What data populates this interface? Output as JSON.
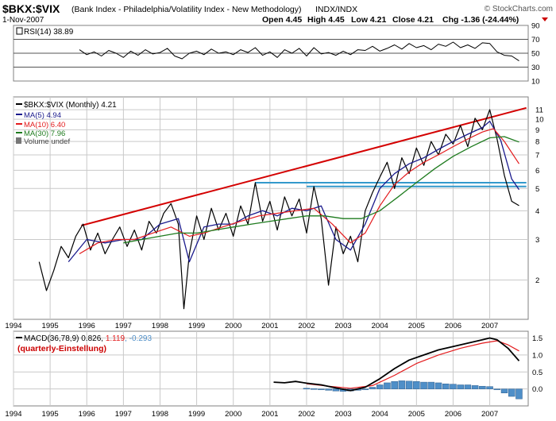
{
  "header": {
    "symbol": "$BKX:$VIX",
    "description": "(Bank Index - Philadelphia/Volatility Index - New Methodology)",
    "exchange": "INDX/INDX",
    "watermark": "© StockCharts.com",
    "date": "1-Nov-2007",
    "quote": {
      "open": "Open 4.45",
      "high": "High 4.45",
      "low": "Low 4.21",
      "close": "Close 4.21",
      "chg": "Chg -1.36 (-24.44%)"
    }
  },
  "colors": {
    "price": "#000000",
    "ma5": "#1a1a8c",
    "ma10": "#e31a1c",
    "ma30": "#1e7b1e",
    "trend": "#d40000",
    "support": "#3399cc",
    "hist": "#4f8fc8",
    "grid": "#c9c9c9",
    "annot": "#cc0000"
  },
  "chart_data": [
    {
      "type": "line",
      "name": "rsi_panel",
      "legend": "RSI(14) 38.89",
      "ylim": [
        10,
        90
      ],
      "yticks": [
        "90",
        "70",
        "50",
        "30",
        "10"
      ],
      "reference_lines": [
        70,
        50,
        30
      ],
      "x": [
        1995.8,
        1996.0,
        1996.2,
        1996.4,
        1996.6,
        1996.8,
        1997.0,
        1997.2,
        1997.4,
        1997.6,
        1997.8,
        1998.0,
        1998.2,
        1998.4,
        1998.6,
        1998.8,
        1999.0,
        1999.2,
        1999.4,
        1999.6,
        1999.8,
        2000.0,
        2000.2,
        2000.4,
        2000.6,
        2000.8,
        2001.0,
        2001.2,
        2001.4,
        2001.6,
        2001.8,
        2002.0,
        2002.2,
        2002.4,
        2002.6,
        2002.8,
        2003.0,
        2003.2,
        2003.4,
        2003.6,
        2003.8,
        2004.0,
        2004.2,
        2004.4,
        2004.6,
        2004.8,
        2005.0,
        2005.2,
        2005.4,
        2005.6,
        2005.8,
        2006.0,
        2006.2,
        2006.4,
        2006.6,
        2006.8,
        2007.0,
        2007.2,
        2007.4,
        2007.6,
        2007.8
      ],
      "values": [
        55,
        48,
        52,
        46,
        54,
        50,
        44,
        53,
        47,
        55,
        49,
        51,
        57,
        46,
        42,
        50,
        53,
        48,
        56,
        50,
        52,
        48,
        55,
        51,
        58,
        47,
        52,
        44,
        55,
        50,
        57,
        46,
        58,
        49,
        51,
        47,
        53,
        48,
        55,
        54,
        60,
        53,
        57,
        62,
        56,
        64,
        58,
        61,
        55,
        63,
        60,
        66,
        58,
        62,
        57,
        65,
        64,
        52,
        47,
        46,
        39
      ]
    },
    {
      "type": "line",
      "name": "price_panel",
      "legend": [
        "$BKX:$VIX (Monthly) 4.21",
        "MA(5) 4.94",
        "MA(10) 6.40",
        "MA(30) 7.96",
        "Volume undef"
      ],
      "scale": "log",
      "ylim": [
        1.35,
        12.5
      ],
      "yticks": [
        "11",
        "10",
        "9",
        "8",
        "7",
        "6",
        "5",
        "4",
        "3",
        "2"
      ],
      "categories": [
        "1994",
        "1995",
        "1996",
        "1997",
        "1998",
        "1999",
        "2000",
        "2001",
        "2002",
        "2003",
        "2004",
        "2005",
        "2006",
        "2007"
      ],
      "series": [
        {
          "name": "$BKX:$VIX",
          "x": [
            1994.7,
            1994.9,
            1995.1,
            1995.3,
            1995.5,
            1995.7,
            1995.9,
            1996.1,
            1996.3,
            1996.5,
            1996.7,
            1996.9,
            1997.1,
            1997.3,
            1997.5,
            1997.7,
            1997.9,
            1998.1,
            1998.3,
            1998.5,
            1998.65,
            1998.8,
            1999.0,
            1999.2,
            1999.4,
            1999.6,
            1999.8,
            2000.0,
            2000.2,
            2000.4,
            2000.6,
            2000.8,
            2001.0,
            2001.2,
            2001.4,
            2001.6,
            2001.8,
            2002.0,
            2002.2,
            2002.4,
            2002.6,
            2002.8,
            2003.0,
            2003.2,
            2003.4,
            2003.6,
            2003.8,
            2004.0,
            2004.2,
            2004.4,
            2004.6,
            2004.8,
            2005.0,
            2005.2,
            2005.4,
            2005.6,
            2005.8,
            2006.0,
            2006.2,
            2006.4,
            2006.6,
            2006.8,
            2007.0,
            2007.2,
            2007.4,
            2007.6,
            2007.8
          ],
          "values": [
            2.4,
            1.8,
            2.2,
            2.8,
            2.5,
            3.1,
            3.5,
            2.7,
            3.2,
            2.6,
            3.0,
            3.4,
            2.8,
            3.3,
            2.7,
            3.6,
            3.2,
            3.9,
            4.3,
            3.5,
            1.5,
            2.6,
            3.8,
            3.0,
            4.1,
            3.3,
            3.9,
            3.1,
            4.2,
            3.5,
            5.3,
            3.6,
            4.4,
            3.3,
            4.6,
            3.8,
            4.5,
            3.2,
            5.1,
            3.7,
            1.9,
            3.4,
            2.6,
            3.1,
            2.4,
            4.0,
            4.8,
            5.6,
            6.5,
            5.0,
            6.8,
            5.8,
            7.5,
            6.3,
            8.0,
            7.0,
            8.6,
            7.8,
            9.4,
            7.6,
            10.1,
            9.0,
            11.0,
            8.2,
            5.7,
            4.4,
            4.21
          ]
        },
        {
          "name": "MA(5)",
          "x": [
            1995.5,
            1996.0,
            1996.5,
            1997.0,
            1997.5,
            1998.0,
            1998.5,
            1998.8,
            1999.2,
            1999.6,
            2000.0,
            2000.4,
            2000.8,
            2001.2,
            2001.6,
            2002.0,
            2002.4,
            2002.8,
            2003.2,
            2003.6,
            2004.0,
            2004.4,
            2004.8,
            2005.2,
            2005.6,
            2006.0,
            2006.4,
            2006.8,
            2007.0,
            2007.3,
            2007.6,
            2007.8
          ],
          "values": [
            2.4,
            3.0,
            2.9,
            3.0,
            3.0,
            3.5,
            3.7,
            2.4,
            3.4,
            3.5,
            3.5,
            3.8,
            4.0,
            3.8,
            4.1,
            4.0,
            4.2,
            3.0,
            2.7,
            3.5,
            5.0,
            5.8,
            6.4,
            6.8,
            7.4,
            8.0,
            8.6,
            9.2,
            9.8,
            8.1,
            5.5,
            4.94
          ]
        },
        {
          "name": "MA(10)",
          "x": [
            1995.8,
            1996.3,
            1996.8,
            1997.3,
            1997.8,
            1998.3,
            1998.8,
            1999.2,
            1999.7,
            2000.2,
            2000.7,
            2001.2,
            2001.7,
            2002.2,
            2002.7,
            2003.2,
            2003.6,
            2004.0,
            2004.4,
            2004.8,
            2005.2,
            2005.6,
            2006.0,
            2006.4,
            2006.8,
            2007.1,
            2007.4,
            2007.8
          ],
          "values": [
            2.6,
            2.9,
            3.0,
            3.0,
            3.2,
            3.4,
            3.1,
            3.2,
            3.4,
            3.6,
            3.8,
            3.9,
            4.0,
            4.1,
            3.5,
            2.9,
            3.2,
            4.2,
            5.2,
            5.9,
            6.5,
            7.0,
            7.6,
            8.2,
            8.8,
            9.1,
            8.0,
            6.4
          ]
        },
        {
          "name": "MA(30)",
          "x": [
            1997.0,
            1997.5,
            1998.0,
            1998.5,
            1999.0,
            1999.5,
            2000.0,
            2000.5,
            2001.0,
            2001.5,
            2002.0,
            2002.5,
            2003.0,
            2003.5,
            2004.0,
            2004.5,
            2005.0,
            2005.5,
            2006.0,
            2006.5,
            2007.0,
            2007.4,
            2007.8
          ],
          "values": [
            2.9,
            3.0,
            3.1,
            3.2,
            3.2,
            3.3,
            3.4,
            3.5,
            3.6,
            3.7,
            3.8,
            3.8,
            3.7,
            3.7,
            4.0,
            4.6,
            5.3,
            6.1,
            6.9,
            7.6,
            8.3,
            8.4,
            7.96
          ]
        }
      ],
      "trendline": {
        "x": [
          1995.85,
          2008.0
        ],
        "values": [
          3.45,
          11.2
        ]
      },
      "support_lines": [
        {
          "x": [
            2000.6,
            2008.0
          ],
          "value": 5.3
        },
        {
          "x": [
            2002.0,
            2008.0
          ],
          "value": 5.1
        }
      ]
    },
    {
      "type": "line",
      "name": "macd_panel",
      "legend": [
        "MACD(36,78,9) 0.826, ",
        "1.119",
        ", -0.293"
      ],
      "annotation": "(quarterly-Einstellung)",
      "ylim": [
        -0.5,
        1.7
      ],
      "yticks": [
        "1.5",
        "1.0",
        "0.5",
        "0.0"
      ],
      "categories": [
        "1994",
        "1995",
        "1996",
        "1997",
        "1998",
        "1999",
        "2000",
        "2001",
        "2002",
        "2003",
        "2004",
        "2005",
        "2006",
        "2007"
      ],
      "series": [
        {
          "name": "MACD",
          "x": [
            2001.1,
            2001.4,
            2001.7,
            2002.0,
            2002.4,
            2002.8,
            2003.2,
            2003.6,
            2004.0,
            2004.4,
            2004.8,
            2005.2,
            2005.6,
            2006.0,
            2006.4,
            2006.8,
            2007.0,
            2007.2,
            2007.5,
            2007.8
          ],
          "values": [
            0.2,
            0.18,
            0.22,
            0.17,
            0.12,
            0.03,
            -0.05,
            0.05,
            0.3,
            0.6,
            0.85,
            1.0,
            1.15,
            1.25,
            1.35,
            1.45,
            1.5,
            1.45,
            1.2,
            0.826
          ]
        },
        {
          "name": "Signal",
          "x": [
            2002.0,
            2002.6,
            2003.2,
            2003.8,
            2004.4,
            2005.0,
            2005.6,
            2006.2,
            2006.8,
            2007.2,
            2007.5,
            2007.8
          ],
          "values": [
            0.15,
            0.08,
            0.02,
            0.1,
            0.4,
            0.75,
            1.0,
            1.2,
            1.35,
            1.42,
            1.3,
            1.119
          ]
        }
      ],
      "histogram": {
        "x": [
          2002.0,
          2002.2,
          2002.4,
          2002.6,
          2002.8,
          2003.0,
          2003.2,
          2003.4,
          2003.6,
          2003.8,
          2004.0,
          2004.2,
          2004.4,
          2004.6,
          2004.8,
          2005.0,
          2005.2,
          2005.4,
          2005.6,
          2005.8,
          2006.0,
          2006.2,
          2006.4,
          2006.6,
          2006.8,
          2007.0,
          2007.2,
          2007.4,
          2007.6,
          2007.8
        ],
        "values": [
          0.02,
          0.01,
          -0.02,
          -0.04,
          -0.06,
          -0.07,
          -0.06,
          -0.04,
          -0.01,
          0.05,
          0.12,
          0.18,
          0.22,
          0.24,
          0.23,
          0.22,
          0.2,
          0.2,
          0.18,
          0.15,
          0.14,
          0.12,
          0.12,
          0.1,
          0.08,
          0.07,
          -0.02,
          -0.12,
          -0.22,
          -0.293
        ]
      }
    }
  ]
}
